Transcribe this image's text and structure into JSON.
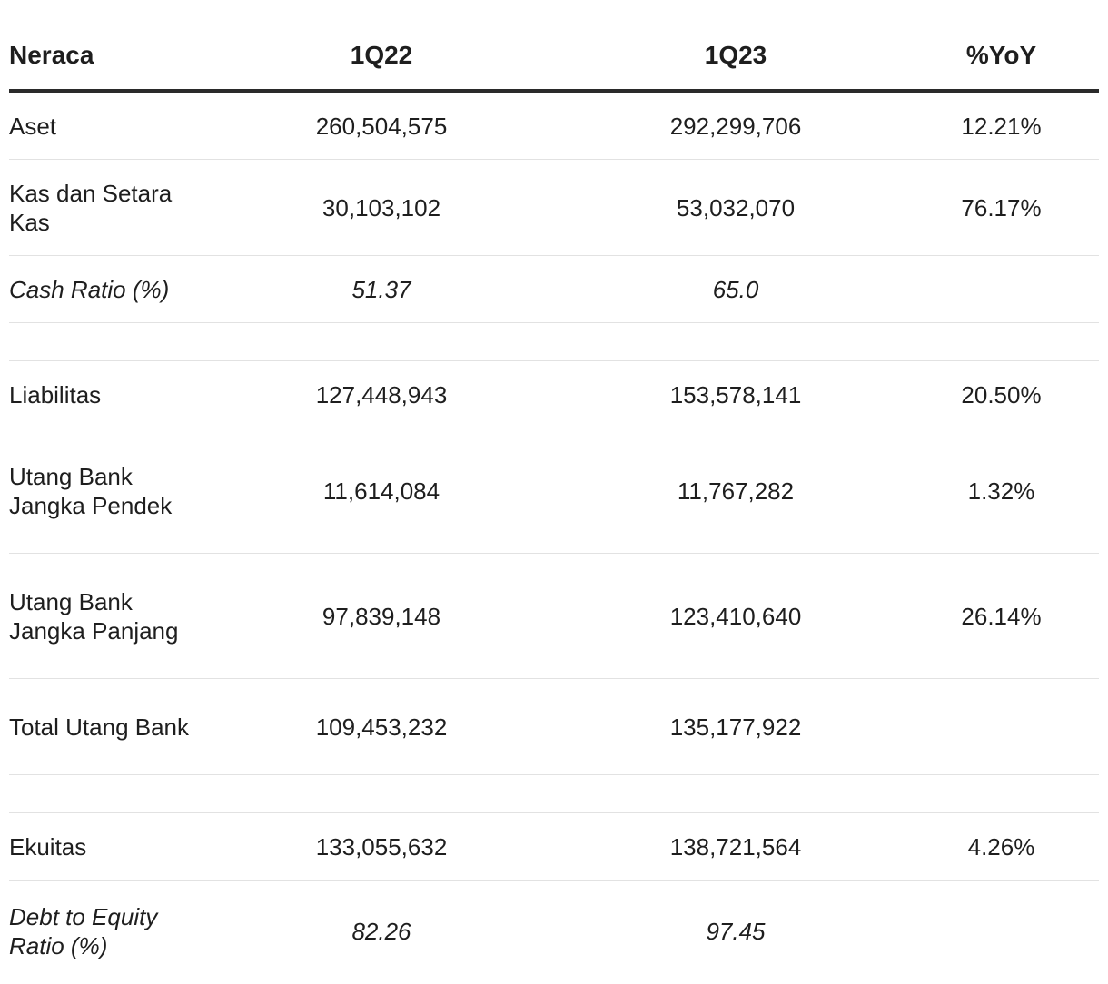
{
  "chart_data": {
    "type": "table",
    "columns": [
      "Neraca",
      "1Q22",
      "1Q23",
      "%YoY"
    ],
    "rows": [
      {
        "label": "Aset",
        "q22": "260,504,575",
        "q23": "292,299,706",
        "yoy": "12.21%"
      },
      {
        "label": "Kas dan Setara Kas",
        "q22": "30,103,102",
        "q23": "53,032,070",
        "yoy": "76.17%"
      },
      {
        "label": "Cash Ratio (%)",
        "q22": "51.37",
        "q23": "65.0",
        "yoy": ""
      },
      {
        "label": "Liabilitas",
        "q22": "127,448,943",
        "q23": "153,578,141",
        "yoy": "20.50%"
      },
      {
        "label": "Utang Bank Jangka Pendek",
        "q22": "11,614,084",
        "q23": "11,767,282",
        "yoy": "1.32%"
      },
      {
        "label": "Utang Bank Jangka Panjang",
        "q22": "97,839,148",
        "q23": "123,410,640",
        "yoy": "26.14%"
      },
      {
        "label": "Total Utang Bank",
        "q22": "109,453,232",
        "q23": "135,177,922",
        "yoy": ""
      },
      {
        "label": "Ekuitas",
        "q22": "133,055,632",
        "q23": "138,721,564",
        "yoy": "4.26%"
      },
      {
        "label": "Debt to Equity Ratio (%)",
        "q22": "82.26",
        "q23": "97.45",
        "yoy": ""
      }
    ]
  }
}
